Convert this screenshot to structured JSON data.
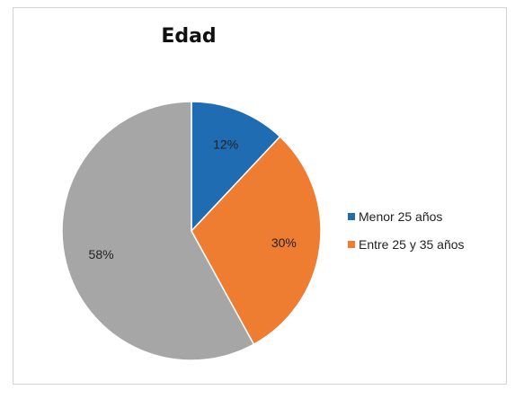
{
  "chart_data": {
    "type": "pie",
    "title": "Edad",
    "slices": [
      {
        "label": "Menor 25 años",
        "value": 12,
        "value_label": "12%",
        "color": "#1f6cb3"
      },
      {
        "label": "Entre 25 y 35 años",
        "value": 30,
        "value_label": "30%",
        "color": "#ee7d31"
      },
      {
        "label": "",
        "value": 58,
        "value_label": "58%",
        "color": "#a6a6a6"
      }
    ],
    "legend": {
      "placement": "right",
      "entries": [
        {
          "label": "Menor 25 años",
          "color": "#1f6cb3"
        },
        {
          "label": "Entre 25 y 35 años",
          "color": "#ee7d31"
        }
      ]
    }
  }
}
